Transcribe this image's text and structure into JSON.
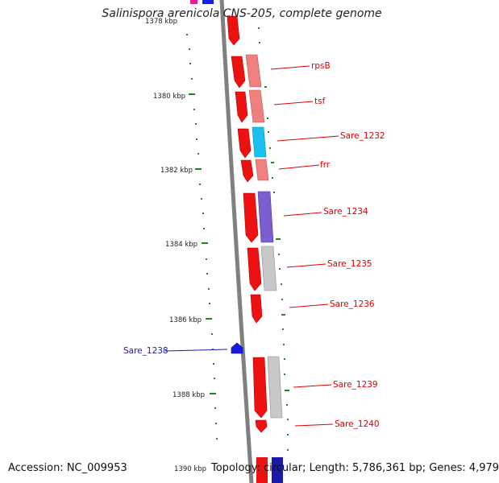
{
  "title": "Salinispora arenicola CNS-205, complete genome",
  "accession_text": "Accession: NC_009953",
  "info_text": "Topology: circular; Length: 5,786,361 bp; Genes: 4,979",
  "colors": {
    "backbone": "#808080",
    "tick": "#1a8c1a",
    "strand_red": "#ee1111",
    "label_red": "#dd0000",
    "label_blue": "#1a1aa8"
  },
  "ticks": [
    {
      "label": "1380 kbp"
    },
    {
      "label": "1382 kbp"
    },
    {
      "label": "1384 kbp"
    },
    {
      "label": "1386 kbp"
    },
    {
      "label": "1388 kbp"
    },
    {
      "label": "1390 kbp"
    }
  ],
  "gene_labels": [
    {
      "label": "rpsB",
      "color": "red"
    },
    {
      "label": "tsf",
      "color": "red"
    },
    {
      "label": "Sare_1232",
      "color": "red"
    },
    {
      "label": "frr",
      "color": "red"
    },
    {
      "label": "Sare_1234",
      "color": "red"
    },
    {
      "label": "Sare_1235",
      "color": "red"
    },
    {
      "label": "Sare_1236",
      "color": "red"
    },
    {
      "label": "Sare_1238",
      "color": "blue"
    },
    {
      "label": "Sare_1239",
      "color": "red"
    },
    {
      "label": "Sare_1240",
      "color": "red"
    }
  ]
}
